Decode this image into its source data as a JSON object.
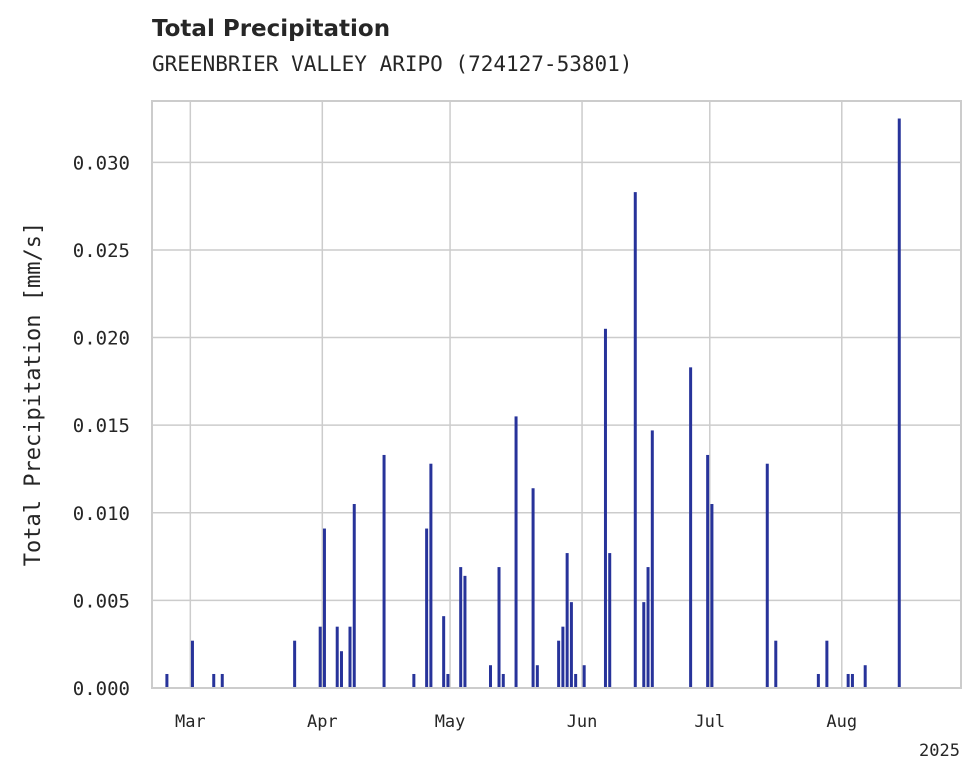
{
  "chart_data": {
    "type": "bar",
    "title": "Total Precipitation",
    "subtitle": "GREENBRIER VALLEY ARIPO (724127-53801)",
    "ylabel": "Total Precipitation [mm/s]",
    "xlabel": "",
    "year_label": "2025",
    "x_axis_start": "2025-02-20",
    "x_axis_end": "2025-08-29",
    "ylim": [
      0,
      0.0335
    ],
    "y_ticks": [
      0.0,
      0.005,
      0.01,
      0.015,
      0.02,
      0.025,
      0.03
    ],
    "y_tick_labels": [
      "0.000",
      "0.005",
      "0.010",
      "0.015",
      "0.020",
      "0.025",
      "0.030"
    ],
    "x_ticks": [
      {
        "date": "2025-03-01",
        "label": "Mar"
      },
      {
        "date": "2025-04-01",
        "label": "Apr"
      },
      {
        "date": "2025-05-01",
        "label": "May"
      },
      {
        "date": "2025-06-01",
        "label": "Jun"
      },
      {
        "date": "2025-07-01",
        "label": "Jul"
      },
      {
        "date": "2025-08-01",
        "label": "Aug"
      }
    ],
    "grid": true,
    "bar_color": "#27339a",
    "grid_color": "#cccccc",
    "x": [
      "2025-02-23",
      "2025-03-01",
      "2025-03-06",
      "2025-03-08",
      "2025-03-25",
      "2025-03-31",
      "2025-04-01",
      "2025-04-04",
      "2025-04-05",
      "2025-04-07",
      "2025-04-08",
      "2025-04-15",
      "2025-04-22",
      "2025-04-25",
      "2025-04-26",
      "2025-04-29",
      "2025-04-30",
      "2025-05-03",
      "2025-05-04",
      "2025-05-10",
      "2025-05-12",
      "2025-05-13",
      "2025-05-16",
      "2025-05-20",
      "2025-05-21",
      "2025-05-26",
      "2025-05-27",
      "2025-05-28",
      "2025-05-29",
      "2025-05-30",
      "2025-06-01",
      "2025-06-06",
      "2025-06-07",
      "2025-06-13",
      "2025-06-15",
      "2025-06-16",
      "2025-06-17",
      "2025-06-26",
      "2025-06-30",
      "2025-07-01",
      "2025-07-14",
      "2025-07-16",
      "2025-07-26",
      "2025-07-28",
      "2025-08-02",
      "2025-08-03",
      "2025-08-06",
      "2025-08-14"
    ],
    "values": [
      0.0008,
      0.0027,
      0.0008,
      0.0008,
      0.0027,
      0.0035,
      0.0091,
      0.0035,
      0.0021,
      0.0035,
      0.0105,
      0.0133,
      0.0008,
      0.0091,
      0.0128,
      0.0041,
      0.0008,
      0.0069,
      0.0064,
      0.0013,
      0.0069,
      0.0008,
      0.0155,
      0.0114,
      0.0013,
      0.0027,
      0.0035,
      0.0077,
      0.0049,
      0.0008,
      0.0013,
      0.0205,
      0.0077,
      0.0283,
      0.0049,
      0.0069,
      0.0147,
      0.0183,
      0.0133,
      0.0105,
      0.0128,
      0.0027,
      0.0008,
      0.0027,
      0.0008,
      0.0008,
      0.0013,
      0.0325
    ]
  }
}
